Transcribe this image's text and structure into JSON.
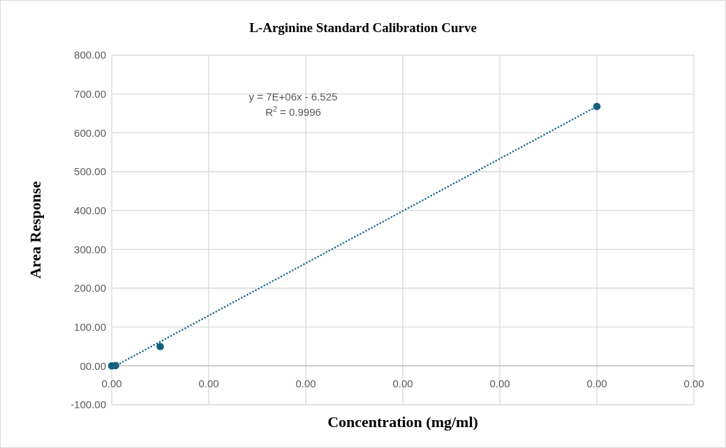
{
  "chart_data": {
    "type": "scatter",
    "title": "L-Arginine Standard Calibration Curve",
    "xlabel": "Concentration (mg/ml)",
    "ylabel": "Area Response",
    "annotations": [
      "y = 7E+06x - 6.525",
      "R$^{2}$ = 0.9996"
    ],
    "series": [
      {
        "color": "#155f7e",
        "marker": "circle",
        "x": [
          0,
          8e-07,
          1e-05,
          0.0001
        ],
        "values": [
          0,
          1,
          50,
          668
        ]
      },
      {
        "type": "line",
        "color": "#1a6f8e",
        "marker": "none",
        "line_style": "dotted",
        "x": [
          0,
          0.0001
        ],
        "values": [
          -5,
          668
        ]
      }
    ],
    "xlim": [
      0,
      0.00012
    ],
    "ylim": [
      -100,
      800
    ],
    "xticks": [
      {
        "value": 0,
        "label": "0.00"
      },
      {
        "value": 2e-05,
        "label": "0.00"
      },
      {
        "value": 4e-05,
        "label": "0.00"
      },
      {
        "value": 6e-05,
        "label": "0.00"
      },
      {
        "value": 8e-05,
        "label": "0.00"
      },
      {
        "value": 0.0001,
        "label": "0.00"
      },
      {
        "value": 0.00012,
        "label": "0.00"
      }
    ],
    "yticks": [
      {
        "value": -100,
        "label": "-100.00"
      },
      {
        "value": 0,
        "label": "00.00"
      },
      {
        "value": 100,
        "label": "100.00"
      },
      {
        "value": 200,
        "label": "200.00"
      },
      {
        "value": 300,
        "label": "300.00"
      },
      {
        "value": 400,
        "label": "400.00"
      },
      {
        "value": 500,
        "label": "500.00"
      },
      {
        "value": 600,
        "label": "600.00"
      },
      {
        "value": 700,
        "label": "700.00"
      },
      {
        "value": 800,
        "label": "800.00"
      }
    ],
    "grid": true
  }
}
